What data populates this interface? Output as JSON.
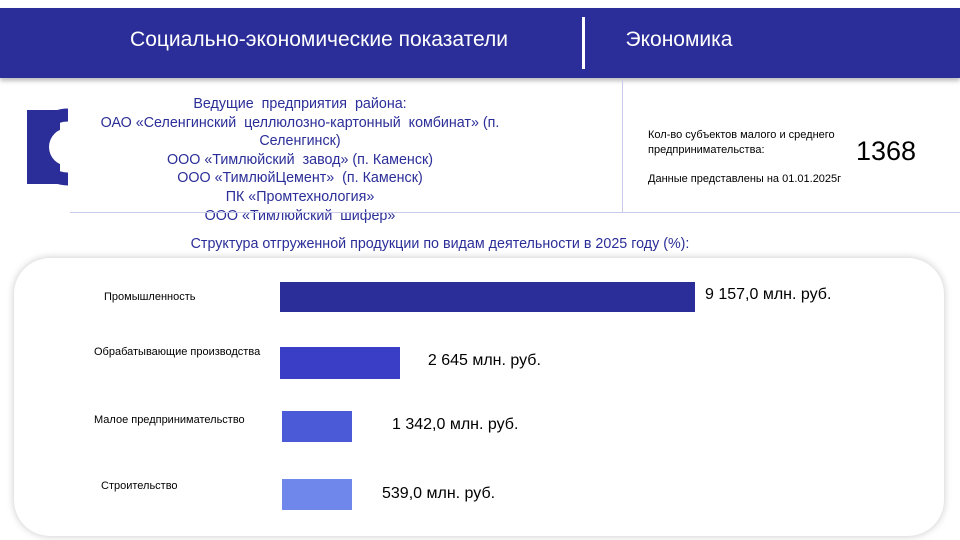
{
  "header": {
    "left_title": "Социально-экономические показатели",
    "right_title": "Экономика"
  },
  "enterprises": {
    "lines": [
      "Ведущие  предприятия  района:",
      "ОАО «Селенгинский  целлюлозно-картонный  комбинат» (п.",
      "Селенгинск)",
      "ООО «Тимлюйский  завод» (п. Каменск)",
      "ООО «ТимлюйЦемент»  (п. Каменск)",
      "ПК «Промтехнология»",
      "ООО «Тимлюйский  шифер»"
    ]
  },
  "stats": {
    "label": "Кол-во субъектов малого и среднего предпринимательства:",
    "value": "1368",
    "date": "Данные представлены на 01.01.2025г"
  },
  "colors": {
    "header": "#2b2e98",
    "accent_text": "#2b2e98"
  },
  "chart_data": {
    "type": "bar",
    "orientation": "horizontal",
    "title": "Структура  отгруженной  продукции  по  видам  деятельности  в  2025  году  (%):",
    "categories": [
      "Промышленность",
      "Обрабатывающие  производства",
      "Малое  предпринимательство",
      "Строительство"
    ],
    "values": [
      9157.0,
      2645.0,
      1342.0,
      539.0
    ],
    "value_labels": [
      "9 157,0 млн. руб.",
      "2 645 млн. руб.",
      "1 342,0 млн. руб.",
      "539,0 млн. руб."
    ],
    "bar_colors": [
      "#2b2e98",
      "#3a3ec6",
      "#4b5ad6",
      "#6f87ea"
    ],
    "grid": false,
    "legend": "none"
  }
}
